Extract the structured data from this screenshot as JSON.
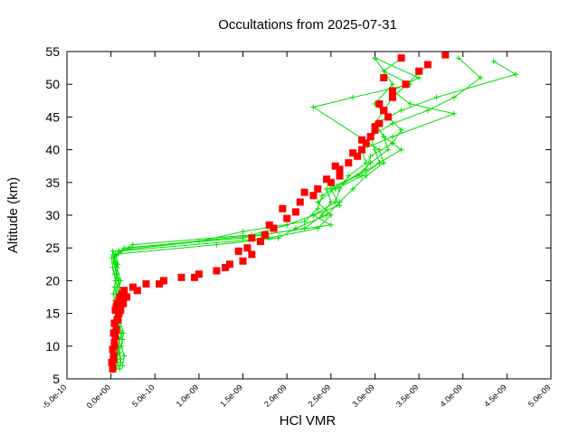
{
  "chart_data": {
    "type": "line",
    "title": "Occultations from 2025-07-31",
    "xlabel": "HCl VMR",
    "ylabel": "Altitude (km)",
    "xlim": [
      -5e-10,
      5e-09
    ],
    "ylim": [
      5,
      55
    ],
    "x_ticks": [
      {
        "value": -5e-10,
        "label": "-5.0e-10"
      },
      {
        "value": 0,
        "label": "0.0e+00"
      },
      {
        "value": 5e-10,
        "label": "5.0e-10"
      },
      {
        "value": 1e-09,
        "label": "1.0e-09"
      },
      {
        "value": 1.5e-09,
        "label": "1.5e-09"
      },
      {
        "value": 2e-09,
        "label": "2.0e-09"
      },
      {
        "value": 2.5e-09,
        "label": "2.5e-09"
      },
      {
        "value": 3e-09,
        "label": "3.0e-09"
      },
      {
        "value": 3.5e-09,
        "label": "3.5e-09"
      },
      {
        "value": 4e-09,
        "label": "4.0e-09"
      },
      {
        "value": 4.5e-09,
        "label": "4.5e-09"
      },
      {
        "value": 5e-09,
        "label": "5.0e-09"
      }
    ],
    "y_ticks": [
      {
        "value": 5,
        "label": "5"
      },
      {
        "value": 10,
        "label": "10"
      },
      {
        "value": 15,
        "label": "15"
      },
      {
        "value": 20,
        "label": "20"
      },
      {
        "value": 25,
        "label": "25"
      },
      {
        "value": 30,
        "label": "30"
      },
      {
        "value": 35,
        "label": "35"
      },
      {
        "value": 40,
        "label": "40"
      },
      {
        "value": 45,
        "label": "45"
      },
      {
        "value": 50,
        "label": "50"
      },
      {
        "value": 55,
        "label": "55"
      }
    ],
    "grid": false,
    "colors": {
      "green_profiles": "#00e000",
      "red_profiles": "#ff0000"
    },
    "series": [
      {
        "name": "green-profile-1",
        "style": "line-plus",
        "color": "#00e000",
        "x": [
          1e-10,
          1.1e-10,
          9e-11,
          1.2e-10,
          8e-11,
          1e-10,
          6e-11,
          9e-11,
          5e-11,
          4e-11,
          9e-11,
          1.8e-09,
          2.35e-09,
          2.5e-09,
          2.35e-09,
          2.55e-09,
          2.85e-09,
          3.05e-09,
          3e-09,
          2.95e-09,
          3.2e-09,
          3.6e-09,
          3.9e-09,
          4.2e-09,
          3.95e-09
        ],
        "y": [
          6.5,
          8,
          10,
          12,
          14,
          16,
          18,
          20,
          22,
          23.5,
          24.5,
          26.5,
          28,
          30,
          32,
          34,
          36,
          38,
          40,
          42,
          44,
          46,
          48,
          51,
          54
        ]
      },
      {
        "name": "green-profile-2",
        "style": "line-plus",
        "color": "#00e000",
        "x": [
          5e-11,
          6e-11,
          5e-11,
          7e-11,
          4e-11,
          6e-11,
          3e-11,
          5e-11,
          2e-11,
          1e-11,
          1.5e-10,
          1.5e-09,
          2.2e-09,
          2.4e-09,
          2.5e-09,
          2.45e-09,
          2.8e-09,
          2.95e-09,
          3.15e-09,
          3.1e-09,
          3e-09,
          3.3e-09,
          3.7e-09,
          4.6e-09,
          4.35e-09
        ],
        "y": [
          6.5,
          8,
          10,
          12,
          14,
          16,
          18,
          20,
          22,
          23.5,
          25,
          26.5,
          28,
          30,
          32,
          34,
          36,
          38,
          40,
          42,
          44,
          46,
          48,
          51.5,
          53.5
        ]
      },
      {
        "name": "green-profile-3",
        "style": "line-plus",
        "color": "#00e000",
        "x": [
          1.3e-10,
          1.5e-10,
          1.2e-10,
          1.4e-10,
          1e-10,
          1.2e-10,
          8e-11,
          1.1e-10,
          7e-11,
          6e-11,
          2.5e-10,
          1.6e-09,
          2e-09,
          2.3e-09,
          2.55e-09,
          2.6e-09,
          2.7e-09,
          2.9e-09,
          2.85e-09,
          3.2e-09,
          3.9e-09,
          3.4e-09,
          3.2e-09,
          3.5e-09,
          3e-09
        ],
        "y": [
          7,
          8.5,
          10,
          12,
          14,
          16,
          18,
          20,
          22,
          23.8,
          25.5,
          27,
          28.5,
          30,
          32,
          34,
          36,
          38,
          40,
          42,
          45.5,
          47,
          49,
          51,
          54
        ]
      },
      {
        "name": "green-profile-4",
        "style": "line-plus",
        "color": "#00e000",
        "x": [
          8e-11,
          7e-11,
          1e-10,
          6e-11,
          9e-11,
          5e-11,
          7e-11,
          4e-11,
          6e-11,
          3e-11,
          1.2e-09,
          1.9e-09,
          2.1e-09,
          2.45e-09,
          2.6e-09,
          2.75e-09,
          2.9e-09,
          3.1e-09,
          3.05e-09,
          2.3e-09,
          2.75e-09,
          3.4e-09,
          3.1e-09,
          3.3e-09
        ],
        "y": [
          7,
          9,
          11,
          13,
          15,
          17,
          19,
          21,
          22.5,
          24,
          25.5,
          26.5,
          28,
          30,
          32,
          34,
          36,
          38,
          40,
          46.5,
          48,
          50,
          52,
          54
        ]
      },
      {
        "name": "green-profile-5",
        "style": "line-plus",
        "color": "#00e000",
        "x": [
          1.1e-10,
          9e-11,
          1.3e-10,
          8e-11,
          1.2e-10,
          7e-11,
          1e-10,
          6e-11,
          8e-11,
          5e-11,
          2e-10,
          1.7e-09,
          2.5e-09,
          2.3e-09,
          2.6e-09,
          2.5e-09,
          2.8e-09,
          3.05e-09,
          3.3e-09,
          3.1e-09,
          3e-09,
          3.2e-09,
          3.6e-09
        ],
        "y": [
          7.5,
          9,
          11,
          13,
          15,
          17,
          19,
          21,
          22.5,
          24,
          25,
          27,
          28.5,
          30,
          31.5,
          34,
          36,
          38,
          40,
          42,
          44,
          48,
          53
        ]
      },
      {
        "name": "green-profile-6",
        "style": "line-plus",
        "color": "#00e000",
        "x": [
          6e-11,
          8e-11,
          5e-11,
          9e-11,
          6e-11,
          8e-11,
          4e-11,
          7e-11,
          3e-11,
          2e-11,
          1e-09,
          1.5e-09,
          2.2e-09,
          2.35e-09,
          2.4e-09,
          2.65e-09,
          2.9e-09,
          2.95e-09,
          3.2e-09,
          3.3e-09,
          3e-09,
          3.2e-09,
          3e-09
        ],
        "y": [
          7,
          9,
          11,
          13,
          15,
          17,
          19,
          21,
          22.8,
          24.5,
          26,
          27.5,
          29,
          31,
          33,
          35,
          37,
          39,
          41,
          43,
          47,
          50,
          54
        ]
      },
      {
        "name": "red-profile-1",
        "style": "squares",
        "color": "#ff0000",
        "x": [
          2e-11,
          3e-11,
          4e-11,
          6e-11,
          8e-11,
          5e-11,
          7e-11,
          1e-10,
          1.5e-10,
          4e-10,
          8e-10,
          1.2e-09,
          1.5e-09,
          1.55e-09,
          1.75e-09,
          2e-09,
          2.15e-09,
          2.35e-09,
          2.6e-09,
          2.7e-09,
          2.85e-09,
          2.95e-09,
          3.05e-09,
          3.1e-09,
          3.2e-09,
          3.1e-09,
          3.3e-09
        ],
        "y": [
          6.5,
          8.5,
          10.5,
          12.5,
          14,
          15.5,
          16.5,
          17.5,
          18.5,
          19.5,
          20.5,
          21.5,
          23,
          25,
          27,
          29.5,
          32,
          34,
          36,
          38,
          40,
          42,
          44,
          46,
          48,
          51,
          54
        ]
      },
      {
        "name": "red-profile-2",
        "style": "squares",
        "color": "#ff0000",
        "x": [
          1e-11,
          2e-11,
          5e-11,
          4e-11,
          9e-11,
          6e-11,
          1e-10,
          1.3e-10,
          2.5e-10,
          6e-10,
          1e-09,
          1.35e-09,
          1.6e-09,
          1.7e-09,
          1.85e-09,
          2.1e-09,
          2.3e-09,
          2.5e-09,
          2.6e-09,
          2.8e-09,
          2.9e-09,
          3e-09,
          3.15e-09,
          3.05e-09,
          3.35e-09,
          3.6e-09
        ],
        "y": [
          7.5,
          9.5,
          11.5,
          13.5,
          15,
          16,
          17,
          18,
          19,
          20,
          21,
          22.5,
          24,
          26,
          28,
          30.5,
          33,
          35,
          37,
          39,
          41,
          43,
          45,
          47,
          50,
          53
        ]
      },
      {
        "name": "red-profile-3",
        "style": "squares",
        "color": "#ff0000",
        "x": [
          3e-11,
          4e-11,
          3e-11,
          7e-11,
          1.1e-10,
          1.4e-10,
          1.8e-10,
          3e-10,
          5.5e-10,
          9.5e-10,
          1.3e-09,
          1.45e-09,
          1.6e-09,
          1.8e-09,
          1.95e-09,
          2.2e-09,
          2.45e-09,
          2.55e-09,
          2.75e-09,
          2.85e-09,
          3e-09,
          3.1e-09,
          3.2e-09,
          3.5e-09,
          3.8e-09
        ],
        "y": [
          8,
          10,
          12,
          14,
          15.5,
          16.5,
          17.5,
          18.5,
          19.5,
          20.5,
          22,
          24.5,
          26.5,
          28.5,
          31,
          33.5,
          35.5,
          37.5,
          39.5,
          41.5,
          43.5,
          46,
          49,
          52,
          54.5
        ]
      }
    ]
  }
}
